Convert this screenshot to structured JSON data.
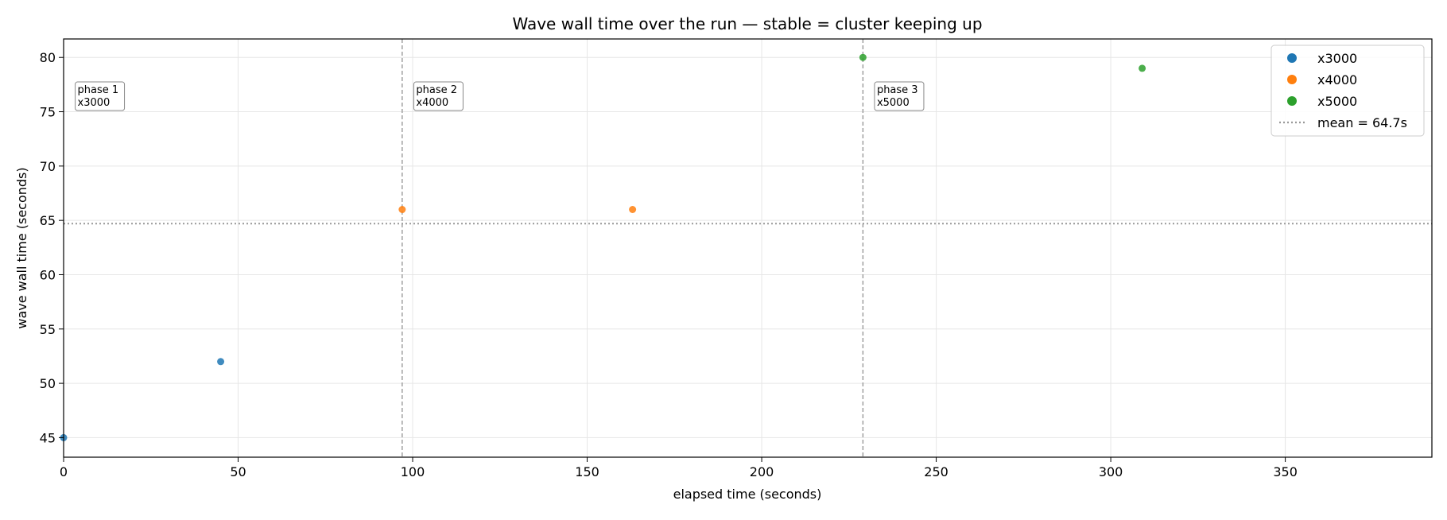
{
  "chart_data": {
    "type": "scatter",
    "title": "Wave wall time over the run — stable = cluster keeping up",
    "xlabel": "elapsed time (seconds)",
    "ylabel": "wave wall time (seconds)",
    "xlim": [
      0,
      392
    ],
    "ylim": [
      43.2,
      81.7
    ],
    "xticks": [
      0,
      50,
      100,
      150,
      200,
      250,
      300,
      350
    ],
    "yticks": [
      45,
      50,
      55,
      60,
      65,
      70,
      75,
      80
    ],
    "grid": true,
    "legend_position": "top-right",
    "series": [
      {
        "name": "x3000",
        "color": "#1f77b4",
        "points": [
          [
            0,
            45
          ],
          [
            45,
            52
          ]
        ]
      },
      {
        "name": "x4000",
        "color": "#ff7f0e",
        "points": [
          [
            97,
            66
          ],
          [
            163,
            66
          ]
        ]
      },
      {
        "name": "x5000",
        "color": "#2ca02c",
        "points": [
          [
            229,
            80
          ],
          [
            309,
            79
          ]
        ]
      }
    ],
    "mean_line": {
      "value": 64.7,
      "label": "mean = 64.7s",
      "color": "#999999"
    },
    "phase_markers": [
      {
        "x": 97,
        "color": "#999999"
      },
      {
        "x": 229,
        "color": "#999999"
      }
    ],
    "annotations": [
      {
        "x": 4,
        "y": 76.5,
        "lines": [
          "phase 1",
          "x3000"
        ]
      },
      {
        "x": 101,
        "y": 76.5,
        "lines": [
          "phase 2",
          "x4000"
        ]
      },
      {
        "x": 233,
        "y": 76.5,
        "lines": [
          "phase 3",
          "x5000"
        ]
      }
    ]
  }
}
